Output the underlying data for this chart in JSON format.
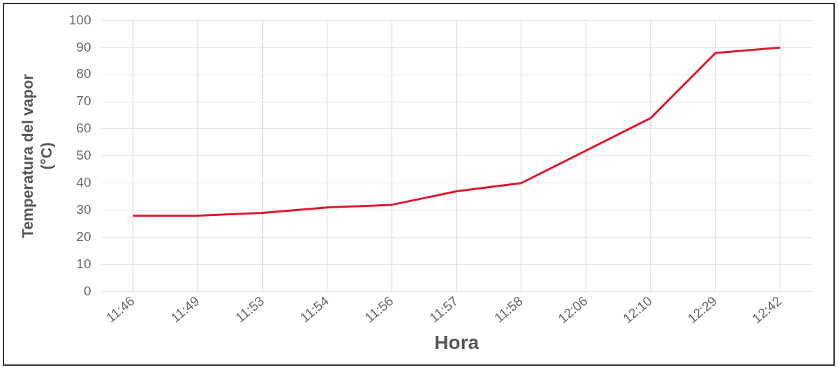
{
  "chart_data": {
    "type": "line",
    "xlabel": "Hora",
    "ylabel": "Temperatura del vapor (°C)",
    "categories": [
      "11:46",
      "11:49",
      "11:53",
      "11:54",
      "11:56",
      "11:57",
      "11:58",
      "12:06",
      "12:10",
      "12:29",
      "12:42"
    ],
    "series": [
      {
        "color": "#e0182d",
        "values": [
          28,
          28,
          29,
          31,
          32,
          37,
          40,
          52,
          64,
          88,
          90
        ]
      }
    ],
    "ylim": [
      0,
      100
    ],
    "yticks": [
      0,
      10,
      20,
      30,
      40,
      50,
      60,
      70,
      80,
      90,
      100
    ],
    "grid": true,
    "legend": false,
    "marker": "none",
    "line_style": "solid"
  }
}
